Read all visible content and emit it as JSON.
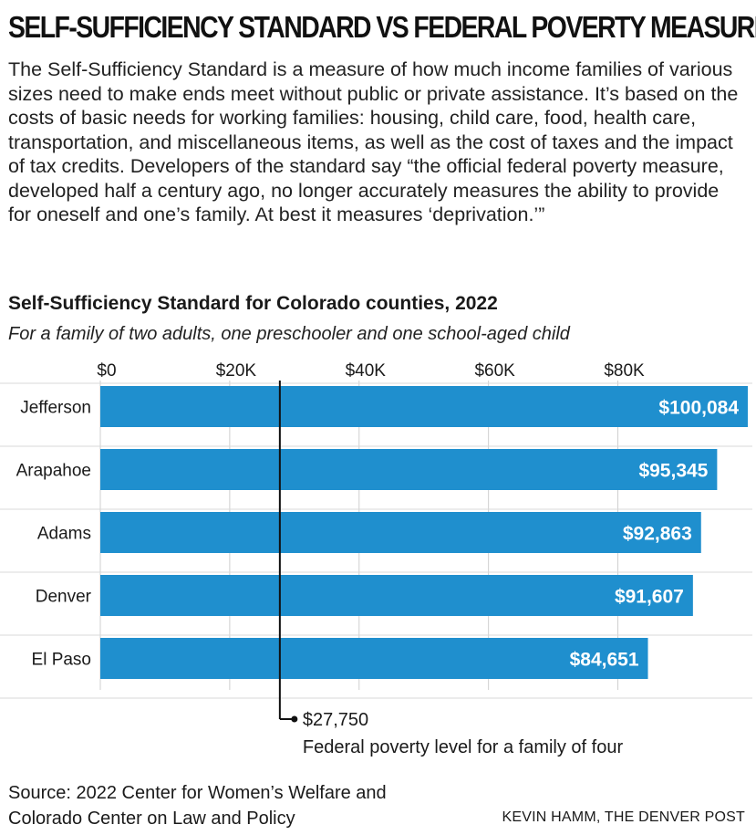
{
  "headline": "SELF-SUFFICIENCY STANDARD VS FEDERAL POVERTY MEASURE",
  "intro": "The Self-Sufficiency Standard is a measure of how much income families of various sizes need to make ends meet without public or private assistance. It’s based on the costs of basic needs for working families: housing, child care, food, health care, transportation, and miscellaneous items, as well as the cost of taxes and the impact of tax credits. Developers of the standard say “the official federal poverty measure, developed half a century ago, no longer accurately measures the ability to provide for oneself and one’s family. At best it measures ‘deprivation.’”",
  "chart_data": {
    "type": "bar",
    "orientation": "horizontal",
    "title": "Self-Sufficiency Standard for Colorado counties, 2022",
    "subtitle": "For a family of two adults, one preschooler and one school-aged child",
    "categories": [
      "Jefferson",
      "Arapahoe",
      "Adams",
      "Denver",
      "El Paso"
    ],
    "values": [
      100084,
      95345,
      92863,
      91607,
      84651
    ],
    "value_labels": [
      "$100,084",
      "$95,345",
      "$92,863",
      "$91,607",
      "$84,651"
    ],
    "xlim": [
      0,
      100084
    ],
    "ticks": [
      0,
      20000,
      40000,
      60000,
      80000
    ],
    "tick_labels": [
      "$0",
      "$20K",
      "$40K",
      "$60K",
      "$80K"
    ],
    "bar_color": "#1f8fce",
    "reference_line": {
      "value": 27750,
      "value_label": "$27,750",
      "label": "Federal poverty level for a family of four"
    }
  },
  "source": "Source: 2022 Center for Women’s Welfare and Colorado Center on Law and Policy",
  "credit": "KEVIN HAMM, THE DENVER POST"
}
